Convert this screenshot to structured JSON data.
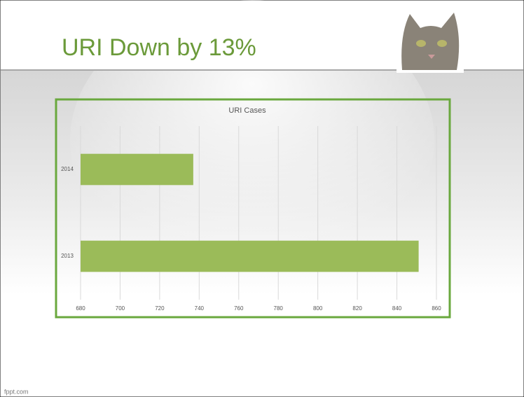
{
  "slide": {
    "title": "URI Down by 13%",
    "footer": "fppt.com"
  },
  "chart_data": {
    "type": "bar",
    "orientation": "horizontal",
    "title": "URI Cases",
    "categories": [
      "2014",
      "2013"
    ],
    "values": [
      737,
      851
    ],
    "color": "#9bbb59",
    "xlim": [
      680,
      860
    ],
    "xticks": [
      680,
      700,
      720,
      740,
      760,
      780,
      800,
      820,
      840,
      860
    ],
    "grid": true
  }
}
